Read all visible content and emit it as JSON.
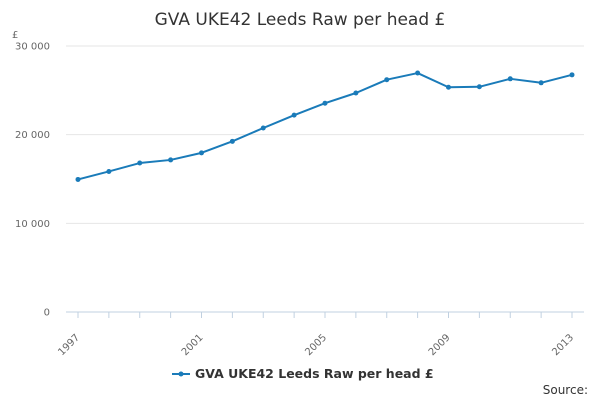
{
  "chart_data": {
    "type": "line",
    "title": "GVA UKE42 Leeds Raw per head £",
    "ylabel": "£",
    "xlabel": "",
    "x": [
      1997,
      1998,
      1999,
      2000,
      2001,
      2002,
      2003,
      2004,
      2005,
      2006,
      2007,
      2008,
      2009,
      2010,
      2011,
      2012,
      2013
    ],
    "x_tick_labels": [
      "1997",
      "2001",
      "2005",
      "2009",
      "2013"
    ],
    "x_tick_values": [
      1997,
      2001,
      2005,
      2009,
      2013
    ],
    "y_tick_labels": [
      "0",
      "10 000",
      "20 000",
      "30 000"
    ],
    "y_tick_values": [
      0,
      10000,
      20000,
      30000
    ],
    "ylim": [
      0,
      30000
    ],
    "xlim": [
      1997,
      2013
    ],
    "series": [
      {
        "name": "GVA UKE42 Leeds Raw per head £",
        "color": "#1a7bb9",
        "values": [
          14950,
          15850,
          16800,
          17150,
          17950,
          19250,
          20750,
          22200,
          23550,
          24700,
          26200,
          26950,
          25350,
          25400,
          26300,
          25850,
          26750
        ]
      }
    ],
    "grid": true,
    "legend_position": "bottom-center"
  },
  "footer": {
    "source_label": "Source:"
  }
}
